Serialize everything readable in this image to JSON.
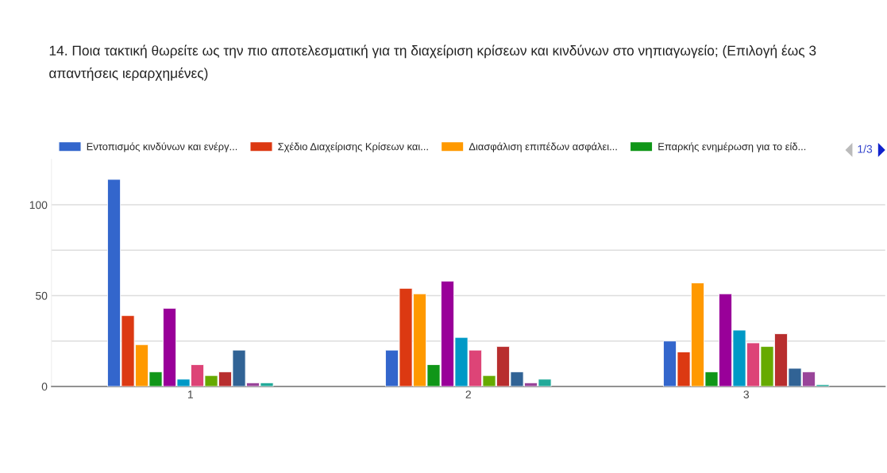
{
  "chart_data": {
    "type": "bar",
    "title": "14. Ποια τακτική θωρείτε ως την πιο αποτελεσματική για τη διαχείριση κρίσεων και κινδύνων στο νηπιαγωγείο; (Επιλογή έως 3 απαντήσεις ιεραρχημένες)",
    "categories": [
      "1",
      "2",
      "3"
    ],
    "series": [
      {
        "name": "Εντοπισμός κινδύνων και ενέργ...",
        "color": "#3366cc",
        "values": [
          114,
          20,
          25
        ]
      },
      {
        "name": "Σχέδιο Διαχείρισης Κρίσεων και...",
        "color": "#dc3912",
        "values": [
          39,
          54,
          19
        ]
      },
      {
        "name": "Διασφάλιση επιπέδων ασφάλει...",
        "color": "#ff9900",
        "values": [
          23,
          51,
          57
        ]
      },
      {
        "name": "Επαρκής ενημέρωση για το είδ...",
        "color": "#109618",
        "values": [
          8,
          12,
          8
        ]
      },
      {
        "color": "#990099",
        "values": [
          43,
          58,
          51
        ]
      },
      {
        "color": "#0099c6",
        "values": [
          4,
          27,
          31
        ]
      },
      {
        "color": "#dd4477",
        "values": [
          12,
          20,
          24
        ]
      },
      {
        "color": "#66aa00",
        "values": [
          6,
          6,
          22
        ]
      },
      {
        "color": "#b82e2e",
        "values": [
          8,
          22,
          29
        ]
      },
      {
        "color": "#316395",
        "values": [
          20,
          8,
          10
        ]
      },
      {
        "color": "#994499",
        "values": [
          2,
          2,
          8
        ]
      },
      {
        "color": "#22aa99",
        "values": [
          2,
          4,
          1
        ]
      }
    ],
    "ylim": [
      0,
      125
    ],
    "yticks": [
      0,
      {
        "value": 25,
        "label": null
      },
      50,
      {
        "value": 75,
        "label": null
      },
      100
    ],
    "grid": "y",
    "legend": "top",
    "annotations": [
      "1/3"
    ]
  }
}
